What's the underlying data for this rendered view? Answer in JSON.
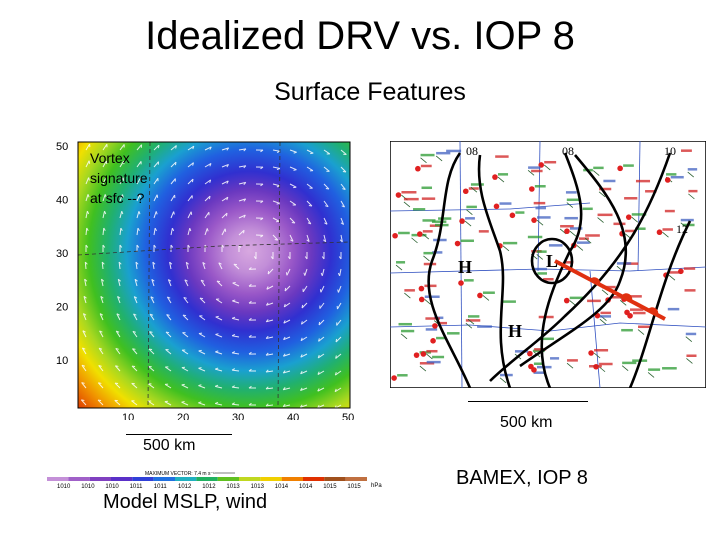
{
  "slide": {
    "title": "Idealized DRV vs. IOP 8",
    "subtitle": "Surface Features"
  },
  "model_panel": {
    "annotation_lines": [
      "Vortex",
      "signature",
      "at sfc --?"
    ],
    "x_ticks": [
      "10",
      "20",
      "30",
      "40",
      "50"
    ],
    "y_ticks": [
      "50",
      "40",
      "30",
      "20",
      "10"
    ],
    "scale_label": "500 km",
    "caption": "Model MSLP, wind"
  },
  "colorbar": {
    "header": "MAXIMUM VECTOR: 7.4 m s⁻¹",
    "values": [
      "1010",
      "1010",
      "1010",
      "1011",
      "1011",
      "1012",
      "1012",
      "1013",
      "1013",
      "1014",
      "1014",
      "1015",
      "1015"
    ],
    "unit": "hPa",
    "colors": [
      "#c490d8",
      "#a060c8",
      "#8040c0",
      "#5a30c8",
      "#3040d8",
      "#2070e0",
      "#20b0c0",
      "#20b060",
      "#60c020",
      "#c0d820",
      "#f0d000",
      "#f08000",
      "#e03000",
      "#a0501c",
      "#c07040"
    ]
  },
  "obs_panel": {
    "isobar_labels": [
      "08",
      "08",
      "10",
      "12"
    ],
    "pressure_labels": [
      "H",
      "L",
      "H"
    ],
    "scale_label": "500 km",
    "caption": "BAMEX, IOP 8"
  }
}
